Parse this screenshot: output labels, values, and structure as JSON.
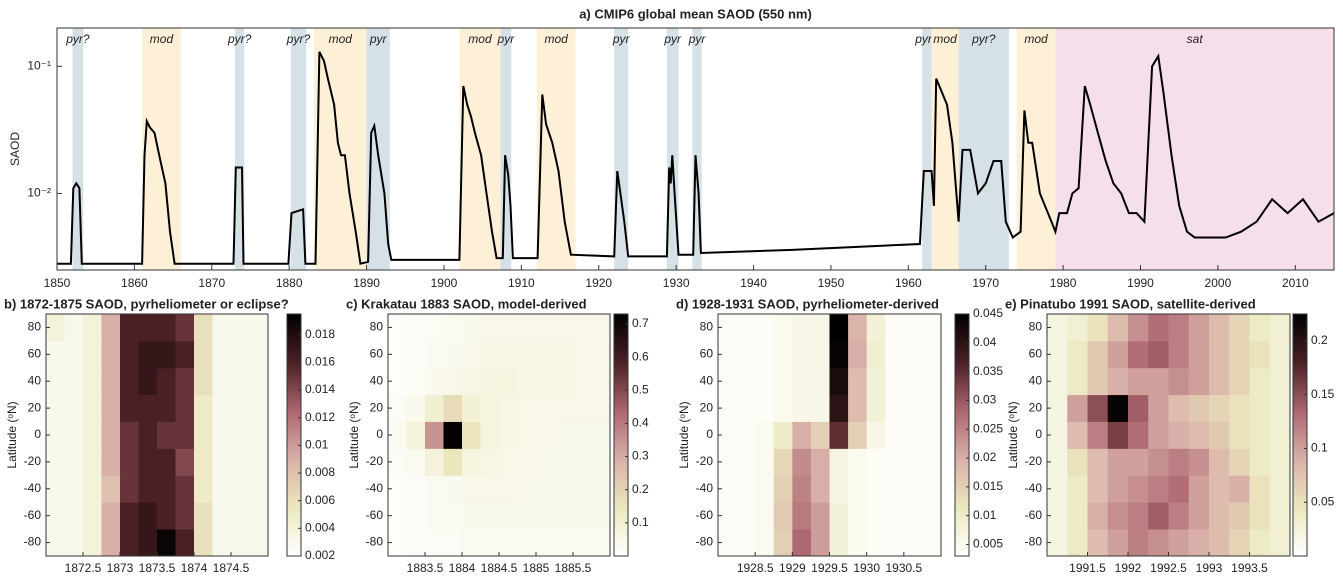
{
  "chart_data": [
    {
      "type": "line",
      "title": "a) CMIP6 global mean SAOD (550 nm)",
      "y_label": "SAOD",
      "log_y": true,
      "color": "#000000",
      "xlim": [
        1850,
        2015
      ],
      "xticks": [
        1850,
        1860,
        1870,
        1880,
        1890,
        1900,
        1910,
        1920,
        1930,
        1940,
        1950,
        1960,
        1970,
        1980,
        1990,
        2000,
        2010
      ],
      "ylim": [
        0.0025,
        0.2
      ],
      "yticks": [
        {
          "value": 0.01,
          "label": "10⁻²"
        },
        {
          "value": 0.1,
          "label": "10⁻¹"
        }
      ],
      "regions": [
        {
          "start": 1852,
          "end": 1853.4,
          "label": "pyr?",
          "color": "#d6e0e7"
        },
        {
          "start": 1861,
          "end": 1866,
          "label": "mod",
          "color": "#fdf0d6"
        },
        {
          "start": 1873,
          "end": 1874.2,
          "label": "pyr?",
          "color": "#d6e0e7"
        },
        {
          "start": 1880.2,
          "end": 1882.2,
          "label": "pyr?",
          "color": "#d6e0e7"
        },
        {
          "start": 1883.2,
          "end": 1890,
          "label": "mod",
          "color": "#fdf0d6"
        },
        {
          "start": 1890,
          "end": 1893,
          "label": "pyr",
          "color": "#d6e0e7"
        },
        {
          "start": 1902,
          "end": 1907.3,
          "label": "mod",
          "color": "#fdf0d6"
        },
        {
          "start": 1907.3,
          "end": 1908.7,
          "label": "pyr",
          "color": "#d6e0e7"
        },
        {
          "start": 1912,
          "end": 1917,
          "label": "mod",
          "color": "#fdf0d6"
        },
        {
          "start": 1922,
          "end": 1923.8,
          "label": "pyr",
          "color": "#d6e0e7"
        },
        {
          "start": 1928.8,
          "end": 1930.3,
          "label": "pyr",
          "color": "#d6e0e7"
        },
        {
          "start": 1932.1,
          "end": 1933.3,
          "label": "pyr",
          "color": "#d6e0e7"
        },
        {
          "start": 1961.8,
          "end": 1963,
          "label": "pyr?",
          "color": "#d6e0e7"
        },
        {
          "start": 1963,
          "end": 1966.5,
          "label": "mod",
          "color": "#fdf0d6"
        },
        {
          "start": 1966.5,
          "end": 1973,
          "label": "pyr?",
          "color": "#d6e0e7"
        },
        {
          "start": 1974,
          "end": 1979,
          "label": "mod",
          "color": "#fdf0d6"
        },
        {
          "start": 1979,
          "end": 2015,
          "label": "sat",
          "color": "#f4dfea"
        }
      ],
      "x": [
        1850,
        1851.8,
        1852.1,
        1852.5,
        1852.9,
        1853.2,
        1861,
        1861.3,
        1861.6,
        1862,
        1862.6,
        1863.2,
        1864,
        1864.6,
        1865.2,
        1872.8,
        1873.1,
        1873.9,
        1874.1,
        1879.9,
        1880.3,
        1881.8,
        1882.1,
        1883.4,
        1883.9,
        1884.5,
        1885,
        1885.8,
        1886.3,
        1886.7,
        1887.2,
        1887.8,
        1888.6,
        1889.2,
        1890.2,
        1890.6,
        1891,
        1891.5,
        1892.3,
        1892.8,
        1893.2,
        1902,
        1902.5,
        1903,
        1903.5,
        1904,
        1904.8,
        1905.5,
        1906.2,
        1906.8,
        1907.6,
        1907.9,
        1908.3,
        1908.6,
        1908.9,
        1912.1,
        1912.7,
        1913.2,
        1914,
        1914.8,
        1915.6,
        1916.4,
        1922,
        1922.4,
        1922.8,
        1923.3,
        1923.8,
        1928.8,
        1929.1,
        1929.3,
        1929.5,
        1929.8,
        1930.3,
        1932.2,
        1932.5,
        1932.9,
        1933.2,
        1945,
        1961.5,
        1962,
        1963,
        1963.3,
        1963.6,
        1964,
        1965,
        1965.7,
        1966.5,
        1967,
        1968,
        1969,
        1970,
        1971,
        1972,
        1972.6,
        1973.5,
        1974.5,
        1975,
        1975.5,
        1976,
        1977,
        1978.5,
        1979,
        1979.5,
        1980.5,
        1981.2,
        1982,
        1982.8,
        1983.5,
        1984.5,
        1985.5,
        1986.5,
        1987.5,
        1988.5,
        1989.5,
        1990.5,
        1991.5,
        1992.3,
        1993,
        1994,
        1995,
        1996,
        1997,
        1999,
        2001,
        2003,
        2005,
        2007,
        2009,
        2011,
        2013,
        2015
      ],
      "values": [
        0.0028,
        0.0028,
        0.011,
        0.012,
        0.011,
        0.0028,
        0.0028,
        0.02,
        0.037,
        0.033,
        0.03,
        0.02,
        0.012,
        0.005,
        0.0028,
        0.0028,
        0.016,
        0.016,
        0.0028,
        0.0028,
        0.007,
        0.0075,
        0.0028,
        0.0028,
        0.13,
        0.11,
        0.08,
        0.05,
        0.025,
        0.02,
        0.02,
        0.01,
        0.005,
        0.0028,
        0.0029,
        0.03,
        0.034,
        0.02,
        0.01,
        0.004,
        0.003,
        0.003,
        0.07,
        0.05,
        0.04,
        0.03,
        0.02,
        0.01,
        0.005,
        0.0031,
        0.0031,
        0.02,
        0.014,
        0.008,
        0.0031,
        0.0031,
        0.06,
        0.035,
        0.025,
        0.015,
        0.006,
        0.0033,
        0.0032,
        0.015,
        0.01,
        0.006,
        0.0032,
        0.0032,
        0.016,
        0.012,
        0.02,
        0.01,
        0.0033,
        0.0033,
        0.02,
        0.01,
        0.0034,
        0.0036,
        0.004,
        0.015,
        0.015,
        0.008,
        0.08,
        0.07,
        0.05,
        0.025,
        0.006,
        0.022,
        0.022,
        0.01,
        0.012,
        0.018,
        0.018,
        0.006,
        0.0045,
        0.005,
        0.045,
        0.025,
        0.025,
        0.01,
        0.006,
        0.005,
        0.007,
        0.007,
        0.01,
        0.011,
        0.07,
        0.05,
        0.03,
        0.018,
        0.012,
        0.01,
        0.007,
        0.007,
        0.006,
        0.1,
        0.12,
        0.06,
        0.02,
        0.008,
        0.005,
        0.0045,
        0.0045,
        0.0045,
        0.005,
        0.006,
        0.009,
        0.007,
        0.009,
        0.006,
        0.007
      ]
    },
    {
      "type": "heatmap",
      "title": "b) 1872-1875 SAOD, pyrheliometer or eclipse?",
      "y_label": "Latitude (ᵒN)",
      "colormap": [
        "#ffffff",
        "#ebe8bd",
        "#d9b0a8",
        "#ac6670",
        "#4a2024",
        "#000000"
      ],
      "xlim": [
        1872,
        1875
      ],
      "xticks": [
        1872.5,
        1873,
        1873.5,
        1874,
        1874.5
      ],
      "ylim": [
        -90,
        90
      ],
      "yticks": [
        -80,
        -60,
        -40,
        -20,
        0,
        20,
        40,
        60,
        80
      ],
      "clim": [
        0.002,
        0.0195
      ],
      "cticks": [
        0.002,
        0.004,
        0.006,
        0.008,
        0.01,
        0.012,
        0.014,
        0.016,
        0.018
      ],
      "x": [
        1872.125,
        1872.375,
        1872.625,
        1872.875,
        1873.125,
        1873.375,
        1873.625,
        1873.875,
        1874.125,
        1874.375,
        1874.625,
        1874.875
      ],
      "y": [
        -80,
        -60,
        -40,
        -20,
        0,
        20,
        40,
        60,
        80
      ],
      "z": [
        [
          0.003,
          0.003,
          0.004,
          0.009,
          0.016,
          0.017,
          0.019,
          0.016,
          0.006,
          0.003,
          0.003,
          0.003
        ],
        [
          0.003,
          0.003,
          0.004,
          0.009,
          0.016,
          0.017,
          0.016,
          0.015,
          0.006,
          0.003,
          0.003,
          0.003
        ],
        [
          0.003,
          0.003,
          0.004,
          0.008,
          0.015,
          0.016,
          0.016,
          0.015,
          0.005,
          0.003,
          0.003,
          0.003
        ],
        [
          0.003,
          0.003,
          0.004,
          0.009,
          0.015,
          0.016,
          0.016,
          0.014,
          0.005,
          0.003,
          0.003,
          0.003
        ],
        [
          0.003,
          0.003,
          0.004,
          0.009,
          0.015,
          0.016,
          0.015,
          0.015,
          0.005,
          0.003,
          0.003,
          0.003
        ],
        [
          0.003,
          0.003,
          0.004,
          0.009,
          0.016,
          0.016,
          0.016,
          0.015,
          0.005,
          0.003,
          0.003,
          0.003
        ],
        [
          0.003,
          0.003,
          0.004,
          0.009,
          0.016,
          0.017,
          0.016,
          0.015,
          0.006,
          0.003,
          0.003,
          0.003
        ],
        [
          0.003,
          0.003,
          0.004,
          0.009,
          0.016,
          0.017,
          0.017,
          0.016,
          0.006,
          0.003,
          0.003,
          0.003
        ],
        [
          0.004,
          0.003,
          0.004,
          0.009,
          0.016,
          0.016,
          0.016,
          0.015,
          0.006,
          0.003,
          0.003,
          0.003
        ]
      ]
    },
    {
      "type": "heatmap",
      "title": "c) Krakatau 1883 SAOD, model-derived",
      "y_label": "Latitude (ᵒN)",
      "colormap": [
        "#ffffff",
        "#ebe8bd",
        "#d9b0a8",
        "#ac6670",
        "#4a2024",
        "#000000"
      ],
      "xlim": [
        1883,
        1886
      ],
      "xticks": [
        1883.5,
        1884,
        1884.5,
        1885,
        1885.5
      ],
      "ylim": [
        -90,
        90
      ],
      "yticks": [
        -80,
        -60,
        -40,
        -20,
        0,
        20,
        40,
        60,
        80
      ],
      "clim": [
        0,
        0.73
      ],
      "cticks": [
        0.1,
        0.2,
        0.3,
        0.4,
        0.5,
        0.6,
        0.7
      ],
      "x": [
        1883.125,
        1883.375,
        1883.625,
        1883.875,
        1884.125,
        1884.375,
        1884.625,
        1884.875,
        1885.125,
        1885.375,
        1885.625,
        1885.875
      ],
      "y": [
        -80,
        -60,
        -40,
        -20,
        0,
        20,
        40,
        60,
        80
      ],
      "z": [
        [
          0.01,
          0.02,
          0.02,
          0.02,
          0.03,
          0.03,
          0.03,
          0.03,
          0.03,
          0.03,
          0.03,
          0.03
        ],
        [
          0.01,
          0.02,
          0.03,
          0.03,
          0.04,
          0.04,
          0.04,
          0.04,
          0.04,
          0.04,
          0.04,
          0.04
        ],
        [
          0.01,
          0.02,
          0.03,
          0.04,
          0.05,
          0.05,
          0.05,
          0.04,
          0.04,
          0.04,
          0.04,
          0.04
        ],
        [
          0.02,
          0.03,
          0.08,
          0.15,
          0.07,
          0.06,
          0.05,
          0.05,
          0.04,
          0.04,
          0.04,
          0.04
        ],
        [
          0.03,
          0.08,
          0.35,
          0.72,
          0.15,
          0.07,
          0.06,
          0.05,
          0.05,
          0.04,
          0.04,
          0.04
        ],
        [
          0.02,
          0.04,
          0.1,
          0.18,
          0.09,
          0.07,
          0.06,
          0.05,
          0.05,
          0.05,
          0.05,
          0.05
        ],
        [
          0.01,
          0.02,
          0.04,
          0.05,
          0.06,
          0.07,
          0.07,
          0.06,
          0.06,
          0.06,
          0.05,
          0.05
        ],
        [
          0.01,
          0.02,
          0.03,
          0.04,
          0.05,
          0.06,
          0.06,
          0.06,
          0.06,
          0.06,
          0.05,
          0.05
        ],
        [
          0.01,
          0.02,
          0.02,
          0.03,
          0.04,
          0.05,
          0.05,
          0.05,
          0.05,
          0.05,
          0.05,
          0.05
        ]
      ]
    },
    {
      "type": "heatmap",
      "title": "d) 1928-1931 SAOD, pyrheliometer-derived",
      "y_label": "Latitude (ᵒN)",
      "colormap": [
        "#ffffff",
        "#ebe8bd",
        "#d9b0a8",
        "#ac6670",
        "#4a2024",
        "#000000"
      ],
      "xlim": [
        1928,
        1931
      ],
      "xticks": [
        1928.5,
        1929,
        1929.5,
        1930,
        1930.5
      ],
      "ylim": [
        -90,
        90
      ],
      "yticks": [
        -80,
        -60,
        -40,
        -20,
        0,
        20,
        40,
        60,
        80
      ],
      "clim": [
        0.003,
        0.045
      ],
      "cticks": [
        0.005,
        0.01,
        0.015,
        0.02,
        0.025,
        0.03,
        0.035,
        0.04,
        0.045
      ],
      "x": [
        1928.125,
        1928.375,
        1928.625,
        1928.875,
        1929.125,
        1929.375,
        1929.625,
        1929.875,
        1930.125,
        1930.375,
        1930.625,
        1930.875
      ],
      "y": [
        -80,
        -60,
        -40,
        -20,
        0,
        20,
        40,
        60,
        80
      ],
      "z": [
        [
          0.004,
          0.004,
          0.005,
          0.015,
          0.028,
          0.022,
          0.008,
          0.005,
          0.004,
          0.004,
          0.004,
          0.004
        ],
        [
          0.004,
          0.004,
          0.005,
          0.016,
          0.026,
          0.022,
          0.008,
          0.005,
          0.004,
          0.004,
          0.004,
          0.004
        ],
        [
          0.004,
          0.004,
          0.005,
          0.015,
          0.025,
          0.02,
          0.007,
          0.005,
          0.004,
          0.004,
          0.004,
          0.004
        ],
        [
          0.004,
          0.004,
          0.005,
          0.014,
          0.024,
          0.02,
          0.007,
          0.005,
          0.004,
          0.004,
          0.004,
          0.004
        ],
        [
          0.004,
          0.004,
          0.005,
          0.01,
          0.02,
          0.015,
          0.035,
          0.015,
          0.006,
          0.004,
          0.004,
          0.004
        ],
        [
          0.004,
          0.004,
          0.004,
          0.005,
          0.006,
          0.006,
          0.04,
          0.018,
          0.008,
          0.004,
          0.004,
          0.004
        ],
        [
          0.004,
          0.004,
          0.004,
          0.005,
          0.006,
          0.006,
          0.042,
          0.018,
          0.008,
          0.004,
          0.004,
          0.004
        ],
        [
          0.004,
          0.004,
          0.004,
          0.005,
          0.006,
          0.006,
          0.044,
          0.02,
          0.009,
          0.004,
          0.004,
          0.004
        ],
        [
          0.004,
          0.004,
          0.004,
          0.005,
          0.006,
          0.006,
          0.045,
          0.019,
          0.008,
          0.004,
          0.004,
          0.004
        ]
      ]
    },
    {
      "type": "heatmap",
      "title": "e) Pinatubo 1991 SAOD, satellite-derived",
      "y_label": "Latitude (ᵒN)",
      "colormap": [
        "#ffffff",
        "#ebe8bd",
        "#d9b0a8",
        "#ac6670",
        "#4a2024",
        "#000000"
      ],
      "xlim": [
        1991,
        1994
      ],
      "xticks": [
        1991.5,
        1992,
        1992.5,
        1993,
        1993.5
      ],
      "ylim": [
        -90,
        90
      ],
      "yticks": [
        -80,
        -60,
        -40,
        -20,
        0,
        20,
        40,
        60,
        80
      ],
      "clim": [
        0,
        0.225
      ],
      "cticks": [
        0.05,
        0.1,
        0.15,
        0.2
      ],
      "x": [
        1991.125,
        1991.375,
        1991.625,
        1991.875,
        1992.125,
        1992.375,
        1992.625,
        1992.875,
        1993.125,
        1993.375,
        1993.625,
        1993.875
      ],
      "y": [
        -80,
        -60,
        -40,
        -20,
        0,
        20,
        40,
        60,
        80
      ],
      "z": [
        [
          0.02,
          0.04,
          0.08,
          0.1,
          0.12,
          0.11,
          0.1,
          0.09,
          0.08,
          0.06,
          0.04,
          0.03
        ],
        [
          0.02,
          0.04,
          0.09,
          0.11,
          0.12,
          0.14,
          0.12,
          0.1,
          0.08,
          0.07,
          0.05,
          0.03
        ],
        [
          0.02,
          0.04,
          0.08,
          0.1,
          0.11,
          0.12,
          0.13,
          0.1,
          0.08,
          0.09,
          0.05,
          0.03
        ],
        [
          0.02,
          0.05,
          0.08,
          0.1,
          0.1,
          0.11,
          0.12,
          0.11,
          0.08,
          0.06,
          0.04,
          0.03
        ],
        [
          0.02,
          0.08,
          0.12,
          0.16,
          0.13,
          0.1,
          0.09,
          0.08,
          0.07,
          0.05,
          0.04,
          0.03
        ],
        [
          0.02,
          0.1,
          0.15,
          0.22,
          0.14,
          0.1,
          0.08,
          0.07,
          0.06,
          0.05,
          0.04,
          0.03
        ],
        [
          0.02,
          0.04,
          0.07,
          0.09,
          0.1,
          0.1,
          0.11,
          0.1,
          0.08,
          0.06,
          0.04,
          0.03
        ],
        [
          0.02,
          0.04,
          0.07,
          0.1,
          0.13,
          0.14,
          0.12,
          0.1,
          0.08,
          0.06,
          0.05,
          0.03
        ],
        [
          0.02,
          0.03,
          0.05,
          0.08,
          0.11,
          0.13,
          0.12,
          0.1,
          0.08,
          0.06,
          0.04,
          0.03
        ]
      ]
    }
  ]
}
